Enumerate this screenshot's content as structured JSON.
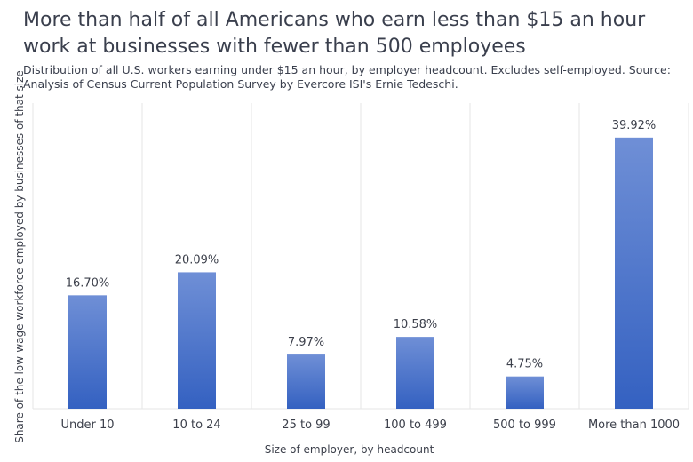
{
  "chart_data": {
    "type": "bar",
    "title": "More than half of all Americans who earn less than $15 an hour work at businesses with fewer than 500 employees",
    "subtitle": "Distribution of all U.S. workers earning under $15 an hour, by employer headcount. Excludes self-employed. Source: Analysis of Census Current Population Survey  by Evercore ISI's Ernie Tedeschi.",
    "xlabel": "Size of employer, by headcount",
    "ylabel": "Share of the low-wage workforce employed by businesses of that size",
    "categories": [
      "Under 10",
      "10 to 24",
      "25 to 99",
      "100 to 499",
      "500 to 999",
      "More than 1000"
    ],
    "values": [
      16.7,
      20.09,
      7.97,
      10.58,
      4.75,
      39.92
    ],
    "data_labels": [
      "16.70%",
      "20.09%",
      "7.97%",
      "10.58%",
      "4.75%",
      "39.92%"
    ],
    "ylim": [
      0,
      45
    ],
    "grid": "vertical",
    "bar_color_top": "#6f8fd6",
    "bar_color_bottom": "#3461c1"
  }
}
